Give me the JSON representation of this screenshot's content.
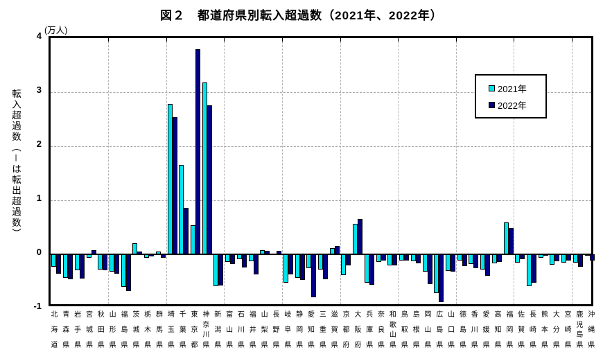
{
  "title": "図２　都道府県別転入超過数（2021年、2022年）",
  "y_axis": {
    "unit": "(万人)",
    "title": "転入超過数（－は転出超過数）",
    "ticks": [
      4,
      3,
      2,
      1,
      0,
      -1
    ],
    "min": -1,
    "max": 4
  },
  "legend": [
    {
      "label": "2021年",
      "color": "#00e4ee"
    },
    {
      "label": "2022年",
      "color": "#000082"
    }
  ],
  "chart_data": {
    "type": "bar",
    "title": "図２　都道府県別転入超過数（2021年、2022年）",
    "xlabel": "",
    "ylabel": "転入超過数（－は転出超過数）",
    "y_unit": "万人",
    "ylim": [
      -1,
      4
    ],
    "grid": true,
    "legend_position": "upper-right",
    "categories": [
      "北海道",
      "青森県",
      "岩手県",
      "宮城県",
      "秋田県",
      "山形県",
      "福島県",
      "茨城県",
      "栃木県",
      "群馬県",
      "埼玉県",
      "千葉県",
      "東京都",
      "神奈川県",
      "新潟県",
      "富山県",
      "石川県",
      "福井県",
      "山梨県",
      "長野県",
      "岐阜県",
      "静岡県",
      "愛知県",
      "三重県",
      "滋賀県",
      "京都府",
      "大阪府",
      "兵庫県",
      "奈良県",
      "和歌山県",
      "鳥取県",
      "島根県",
      "岡山県",
      "広島県",
      "山口県",
      "徳島県",
      "香川県",
      "愛媛県",
      "高知県",
      "福岡県",
      "佐賀県",
      "長崎県",
      "熊本県",
      "大分県",
      "宮崎県",
      "鹿児島県",
      "沖縄県"
    ],
    "series": [
      {
        "name": "2021年",
        "color": "#00e4ee",
        "values": [
          -0.23,
          -0.44,
          -0.3,
          -0.06,
          -0.28,
          -0.32,
          -0.6,
          0.2,
          -0.06,
          0.05,
          2.78,
          1.66,
          0.54,
          3.18,
          -0.59,
          -0.14,
          -0.09,
          -0.13,
          0.08,
          0.01,
          -0.52,
          -0.43,
          -0.25,
          -0.28,
          0.11,
          -0.39,
          0.56,
          -0.52,
          -0.14,
          -0.2,
          -0.12,
          -0.13,
          -0.32,
          -0.72,
          -0.31,
          -0.12,
          -0.18,
          -0.28,
          -0.17,
          0.59,
          -0.15,
          -0.59,
          -0.06,
          -0.19,
          -0.15,
          -0.16,
          -0.02
        ]
      },
      {
        "name": "2022年",
        "color": "#000082",
        "values": [
          -0.36,
          -0.46,
          -0.45,
          0.08,
          -0.29,
          -0.36,
          -0.68,
          0.05,
          -0.04,
          -0.06,
          2.54,
          0.86,
          3.8,
          2.76,
          -0.58,
          -0.18,
          -0.24,
          -0.37,
          0.07,
          0.06,
          -0.37,
          -0.47,
          -0.8,
          -0.46,
          0.15,
          -0.21,
          0.66,
          -0.56,
          -0.12,
          -0.2,
          -0.11,
          -0.17,
          -0.55,
          -0.89,
          -0.32,
          -0.22,
          -0.26,
          -0.4,
          -0.14,
          0.49,
          -0.09,
          -0.52,
          -0.03,
          -0.13,
          -0.11,
          -0.23,
          -0.12
        ]
      }
    ]
  }
}
